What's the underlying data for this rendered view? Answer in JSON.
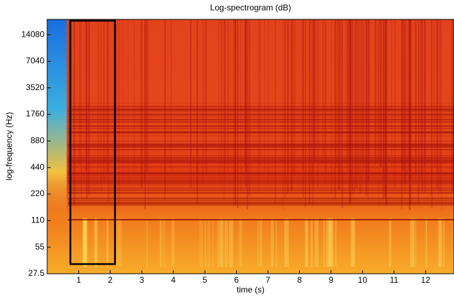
{
  "chart_data": {
    "type": "spectrogram",
    "title": "Log-spectrogram (dB)",
    "x_label": "time (s)",
    "y_label": "log-frequency (Hz)",
    "xlim": [
      0,
      12.9
    ],
    "xticks": [
      1,
      2,
      3,
      4,
      5,
      6,
      7,
      8,
      9,
      10,
      11,
      12
    ],
    "ylim": [
      27.5,
      21000
    ],
    "yticks": [
      27.5,
      55,
      110,
      220,
      440,
      880,
      1760,
      3520,
      7040,
      14080
    ],
    "y_scale": "log",
    "region": {
      "x": [
        0.735,
        2.15
      ],
      "y": [
        35.4,
        20300
      ],
      "color": "#000000"
    }
  }
}
